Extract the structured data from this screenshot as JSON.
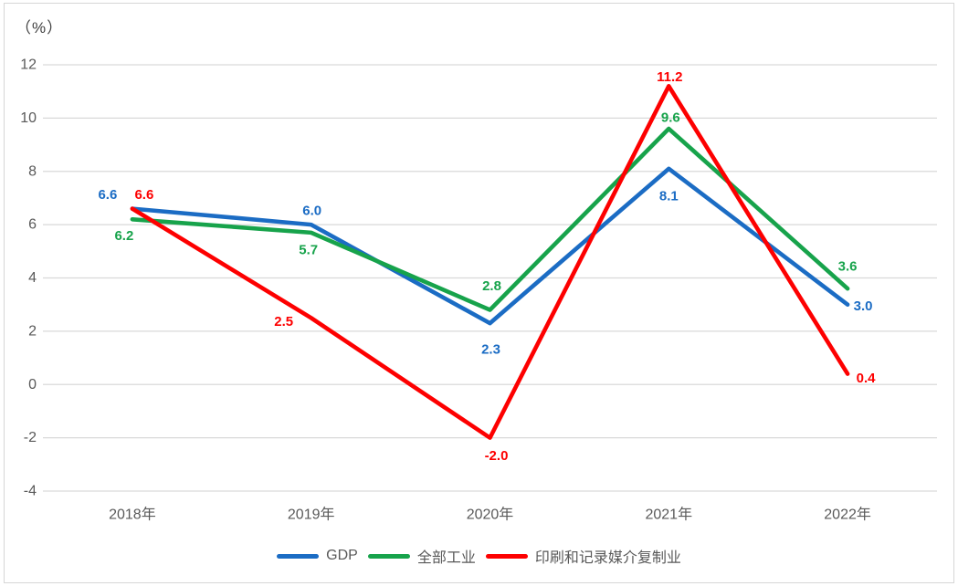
{
  "chart_data": {
    "type": "line",
    "title": "",
    "ylabel_unit": "（%）",
    "categories": [
      "2018年",
      "2019年",
      "2020年",
      "2021年",
      "2022年"
    ],
    "series": [
      {
        "name": "GDP",
        "color": "#1b6cc4",
        "values": [
          6.6,
          6.0,
          2.3,
          8.1,
          3.0
        ]
      },
      {
        "name": "全部工业",
        "color": "#17a34b",
        "values": [
          6.2,
          5.7,
          2.8,
          9.6,
          3.6
        ]
      },
      {
        "name": "印刷和记录媒介复制业",
        "color": "#fd0000",
        "values": [
          6.6,
          2.5,
          -2.0,
          11.2,
          0.4
        ]
      }
    ],
    "ylim": [
      -4,
      12
    ],
    "yticks": [
      12,
      10,
      8,
      6,
      4,
      2,
      0,
      -2,
      -4
    ],
    "grid": true,
    "data_labels": true,
    "legend_position": "bottom",
    "colors": {
      "gridline": "#d9d9d9",
      "axis_text": "#595959",
      "border": "#d6d6d6"
    }
  }
}
